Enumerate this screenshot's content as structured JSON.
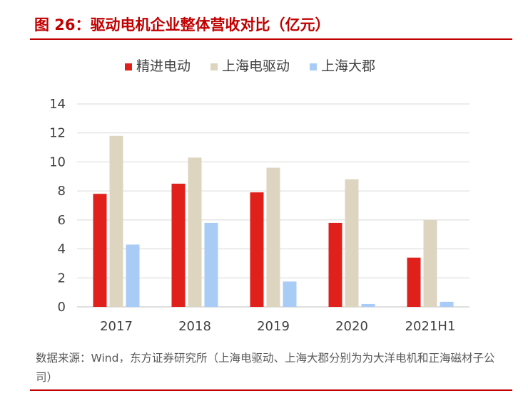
{
  "figure": {
    "title": "图 26：驱动电机企业整体营收对比（亿元）",
    "source": "数据来源：Wind，东方证券研究所（上海电驱动、上海大郡分别为为大洋电机和正海磁材子公司）"
  },
  "chart_data": {
    "type": "bar",
    "categories": [
      "2017",
      "2018",
      "2019",
      "2020",
      "2021H1"
    ],
    "series": [
      {
        "name": "精进电动",
        "color": "#e0201b",
        "values": [
          7.8,
          8.5,
          7.9,
          5.8,
          3.4
        ]
      },
      {
        "name": "上海电驱动",
        "color": "#ddd5c0",
        "values": [
          11.8,
          10.3,
          9.6,
          8.8,
          6.0
        ]
      },
      {
        "name": "上海大郡",
        "color": "#a9ccf7",
        "values": [
          4.3,
          5.8,
          1.75,
          0.2,
          0.35
        ]
      }
    ],
    "yticks": [
      "0",
      "2",
      "4",
      "6",
      "8",
      "10",
      "12",
      "14"
    ],
    "ylim": [
      0,
      14
    ],
    "grid": true,
    "legend_position": "top-center"
  }
}
